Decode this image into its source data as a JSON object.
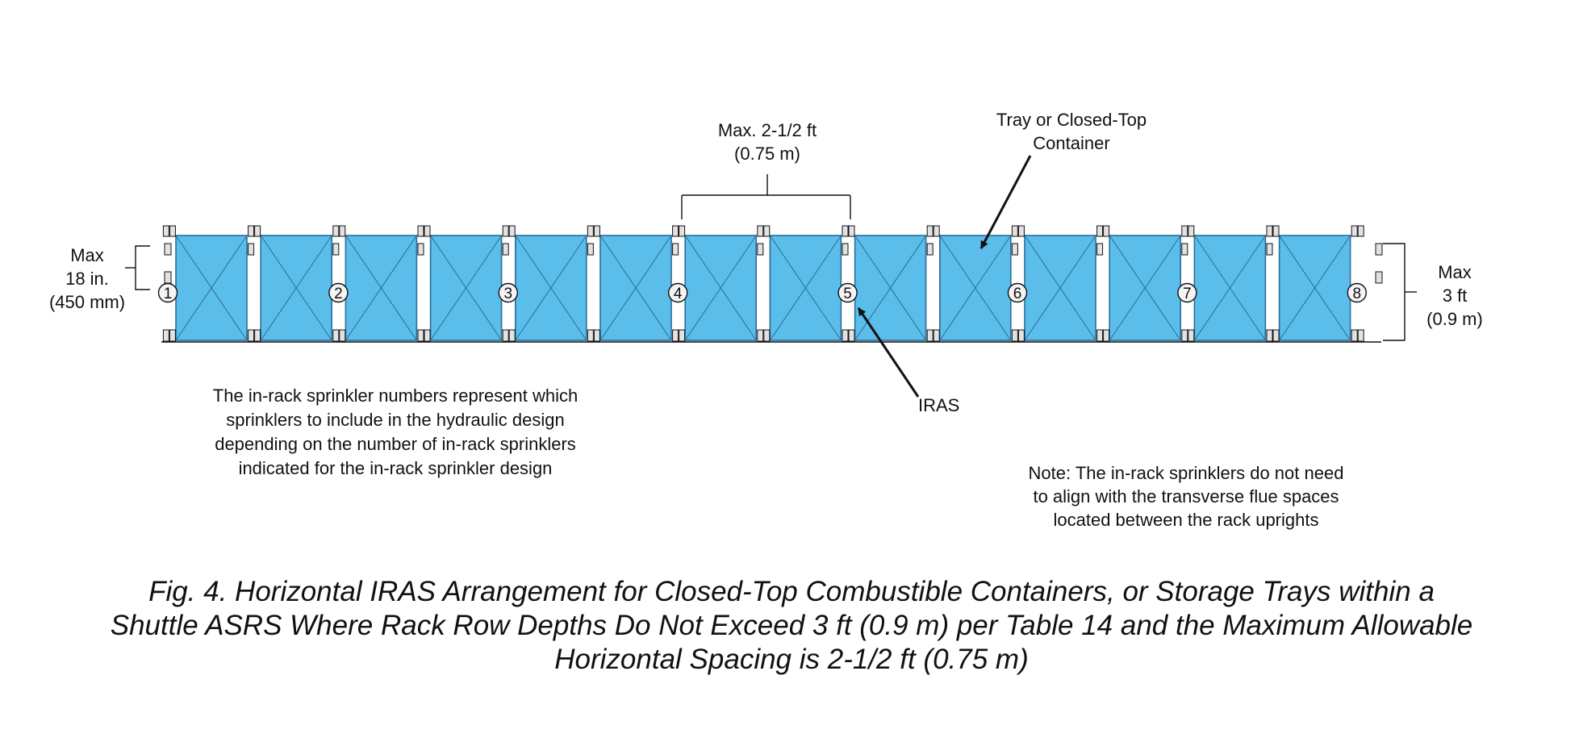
{
  "labels": {
    "max_spacing": [
      "Max. 2-1/2 ft",
      "(0.75 m)"
    ],
    "tray": [
      "Tray or Closed-Top",
      "Container"
    ],
    "left_dim": [
      "Max",
      "18 in.",
      "(450 mm)"
    ],
    "right_dim": [
      "Max",
      "3 ft",
      "(0.9 m)"
    ],
    "iras": "IRAS"
  },
  "notes": {
    "left": [
      "The in-rack sprinkler numbers represent which",
      "sprinklers to include in the hydraulic design",
      "depending on the number of in-rack sprinklers",
      "indicated for the in-rack sprinkler design"
    ],
    "right": [
      "Note: The in-rack sprinklers do not need",
      "to align with the transverse flue spaces",
      "located between the rack uprights"
    ]
  },
  "sprinklers": [
    "1",
    "2",
    "3",
    "4",
    "5",
    "6",
    "7",
    "8"
  ],
  "container_count": 14,
  "colors": {
    "container_fill": "#5bbde9",
    "container_stroke": "#2a6d9a",
    "upright_fill": "#e2e2e2",
    "line": "#111111"
  },
  "caption": [
    "Fig. 4. Horizontal IRAS Arrangement for Closed-Top Combustible Containers, or Storage Trays within a",
    "Shuttle ASRS Where Rack Row Depths Do Not Exceed 3 ft (0.9 m) per Table 14 and the Maximum Allowable",
    "Horizontal Spacing is 2-1/2 ft (0.75 m)"
  ]
}
